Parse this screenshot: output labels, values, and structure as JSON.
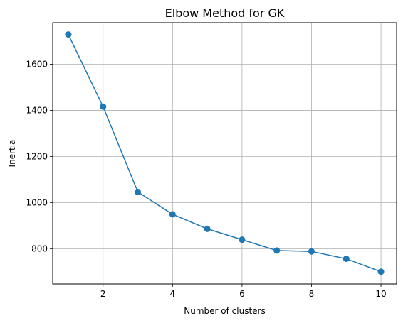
{
  "chart_data": {
    "type": "line",
    "title": "Elbow Method for GK",
    "xlabel": "Number of clusters",
    "ylabel": "Inertia",
    "x": [
      1,
      2,
      3,
      4,
      5,
      6,
      7,
      8,
      9,
      10
    ],
    "series": [
      {
        "values": [
          1729,
          1416,
          1046,
          949,
          886,
          839,
          792,
          788,
          756,
          700
        ],
        "color": "#1f77b4",
        "marker": "circle"
      }
    ],
    "xlim": [
      0.55,
      10.45
    ],
    "ylim": [
      647,
      1780
    ],
    "xticks": [
      2,
      4,
      6,
      8,
      10
    ],
    "yticks": [
      800,
      1000,
      1200,
      1400,
      1600
    ],
    "grid": true
  }
}
